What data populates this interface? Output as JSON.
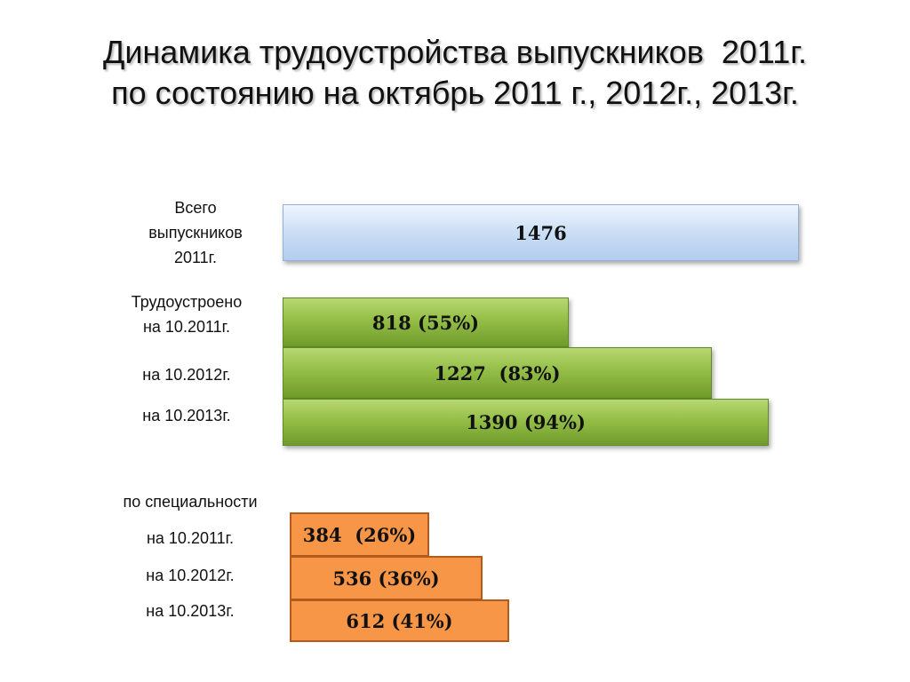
{
  "title": {
    "line1": "Динамика трудоустройства выпускников  2011г.",
    "line2": "по состоянию на октябрь 2011 г., 2012г., 2013г."
  },
  "labels": {
    "total": [
      "Всего",
      "выпускников",
      "2011г."
    ],
    "employed": [
      "Трудоустроено",
      "на 10.2011г."
    ],
    "employed_2012": "на 10.2012г.",
    "employed_2013": "на 10.2013г.",
    "specialty_heading": "по специальности",
    "specialty_2011": "на 10.2011г.",
    "specialty_2012": "на 10.2012г.",
    "specialty_2013": "на 10.2013г."
  },
  "colors": {
    "total": "#c8dcf4",
    "employed": "#94be46",
    "specialty": "#f79646"
  },
  "chart_data": {
    "type": "bar",
    "orientation": "horizontal",
    "title": "Динамика трудоустройства выпускников  2011г. по состоянию на октябрь 2011 г., 2012г., 2013г.",
    "total": 1476,
    "bars": [
      {
        "group": "total",
        "label": "Всего выпускников 2011г.",
        "value": 1476,
        "display": "1476"
      },
      {
        "group": "employed",
        "label": "Трудоустроено на 10.2011г.",
        "value": 818,
        "percent": 55,
        "display": "818 (55%)"
      },
      {
        "group": "employed",
        "label": "на 10.2012г.",
        "value": 1227,
        "percent": 83,
        "display": "1227  (83%)"
      },
      {
        "group": "employed",
        "label": "на 10.2013г.",
        "value": 1390,
        "percent": 94,
        "display": "1390 (94%)"
      },
      {
        "group": "specialty",
        "label": "по специальности на 10.2011г.",
        "value": 384,
        "percent": 26,
        "display": "384  (26%)"
      },
      {
        "group": "specialty",
        "label": "на 10.2012г.",
        "value": 536,
        "percent": 36,
        "display": "536 (36%)"
      },
      {
        "group": "specialty",
        "label": "на 10.2013г.",
        "value": 612,
        "percent": 41,
        "display": "612 (41%)"
      }
    ]
  }
}
